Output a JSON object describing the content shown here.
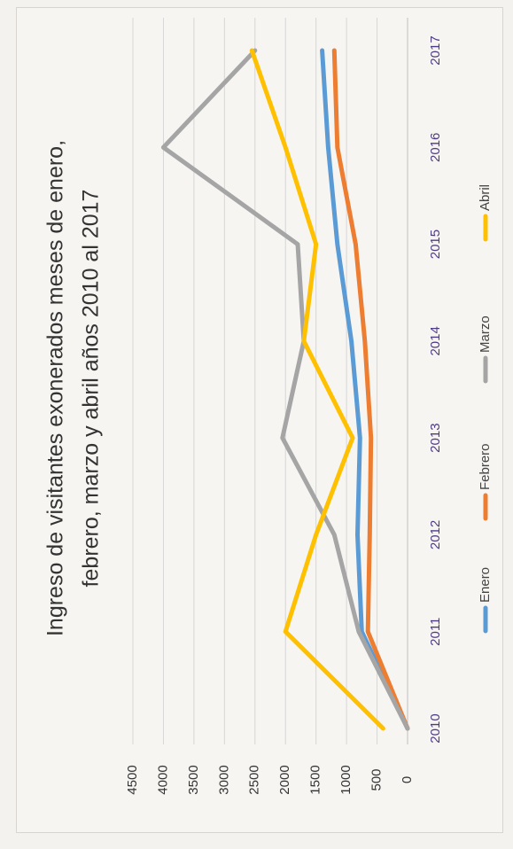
{
  "chart_data": {
    "type": "line",
    "title": "Ingreso de visitantes exonerados meses de enero, febrero, marzo y abril años 2010 al 2017",
    "title_lines": [
      "Ingreso de visitantes exonerados meses de enero,",
      "febrero, marzo y abril años 2010 al 2017"
    ],
    "xlabel": "",
    "ylabel": "",
    "categories": [
      "2010",
      "2011",
      "2012",
      "2013",
      "2014",
      "2015",
      "2016",
      "2017"
    ],
    "ylim": [
      0,
      4500
    ],
    "yticks": [
      0,
      500,
      1000,
      1500,
      2000,
      2500,
      3000,
      3500,
      4000,
      4500
    ],
    "ytick_labels": [
      "0",
      "500",
      "1000",
      "1500",
      "2000",
      "2500",
      "3000",
      "3500",
      "4000",
      "4500"
    ],
    "grid": true,
    "legend": "bottom",
    "orientation": "rotated 90° counter-clockwise",
    "series": [
      {
        "name": "Enero",
        "color": "#5b9bd5",
        "values": [
          0,
          750,
          820,
          780,
          920,
          1150,
          1300,
          1400
        ]
      },
      {
        "name": "Febrero",
        "color": "#ed7d31",
        "values": [
          0,
          650,
          620,
          600,
          700,
          850,
          1150,
          1200
        ]
      },
      {
        "name": "Marzo",
        "color": "#a5a5a5",
        "values": [
          0,
          800,
          1200,
          2050,
          1700,
          1800,
          4000,
          2500
        ]
      },
      {
        "name": "Abril",
        "color": "#ffc000",
        "values": [
          400,
          2000,
          1500,
          900,
          1700,
          1500,
          2000,
          2550
        ]
      }
    ]
  }
}
